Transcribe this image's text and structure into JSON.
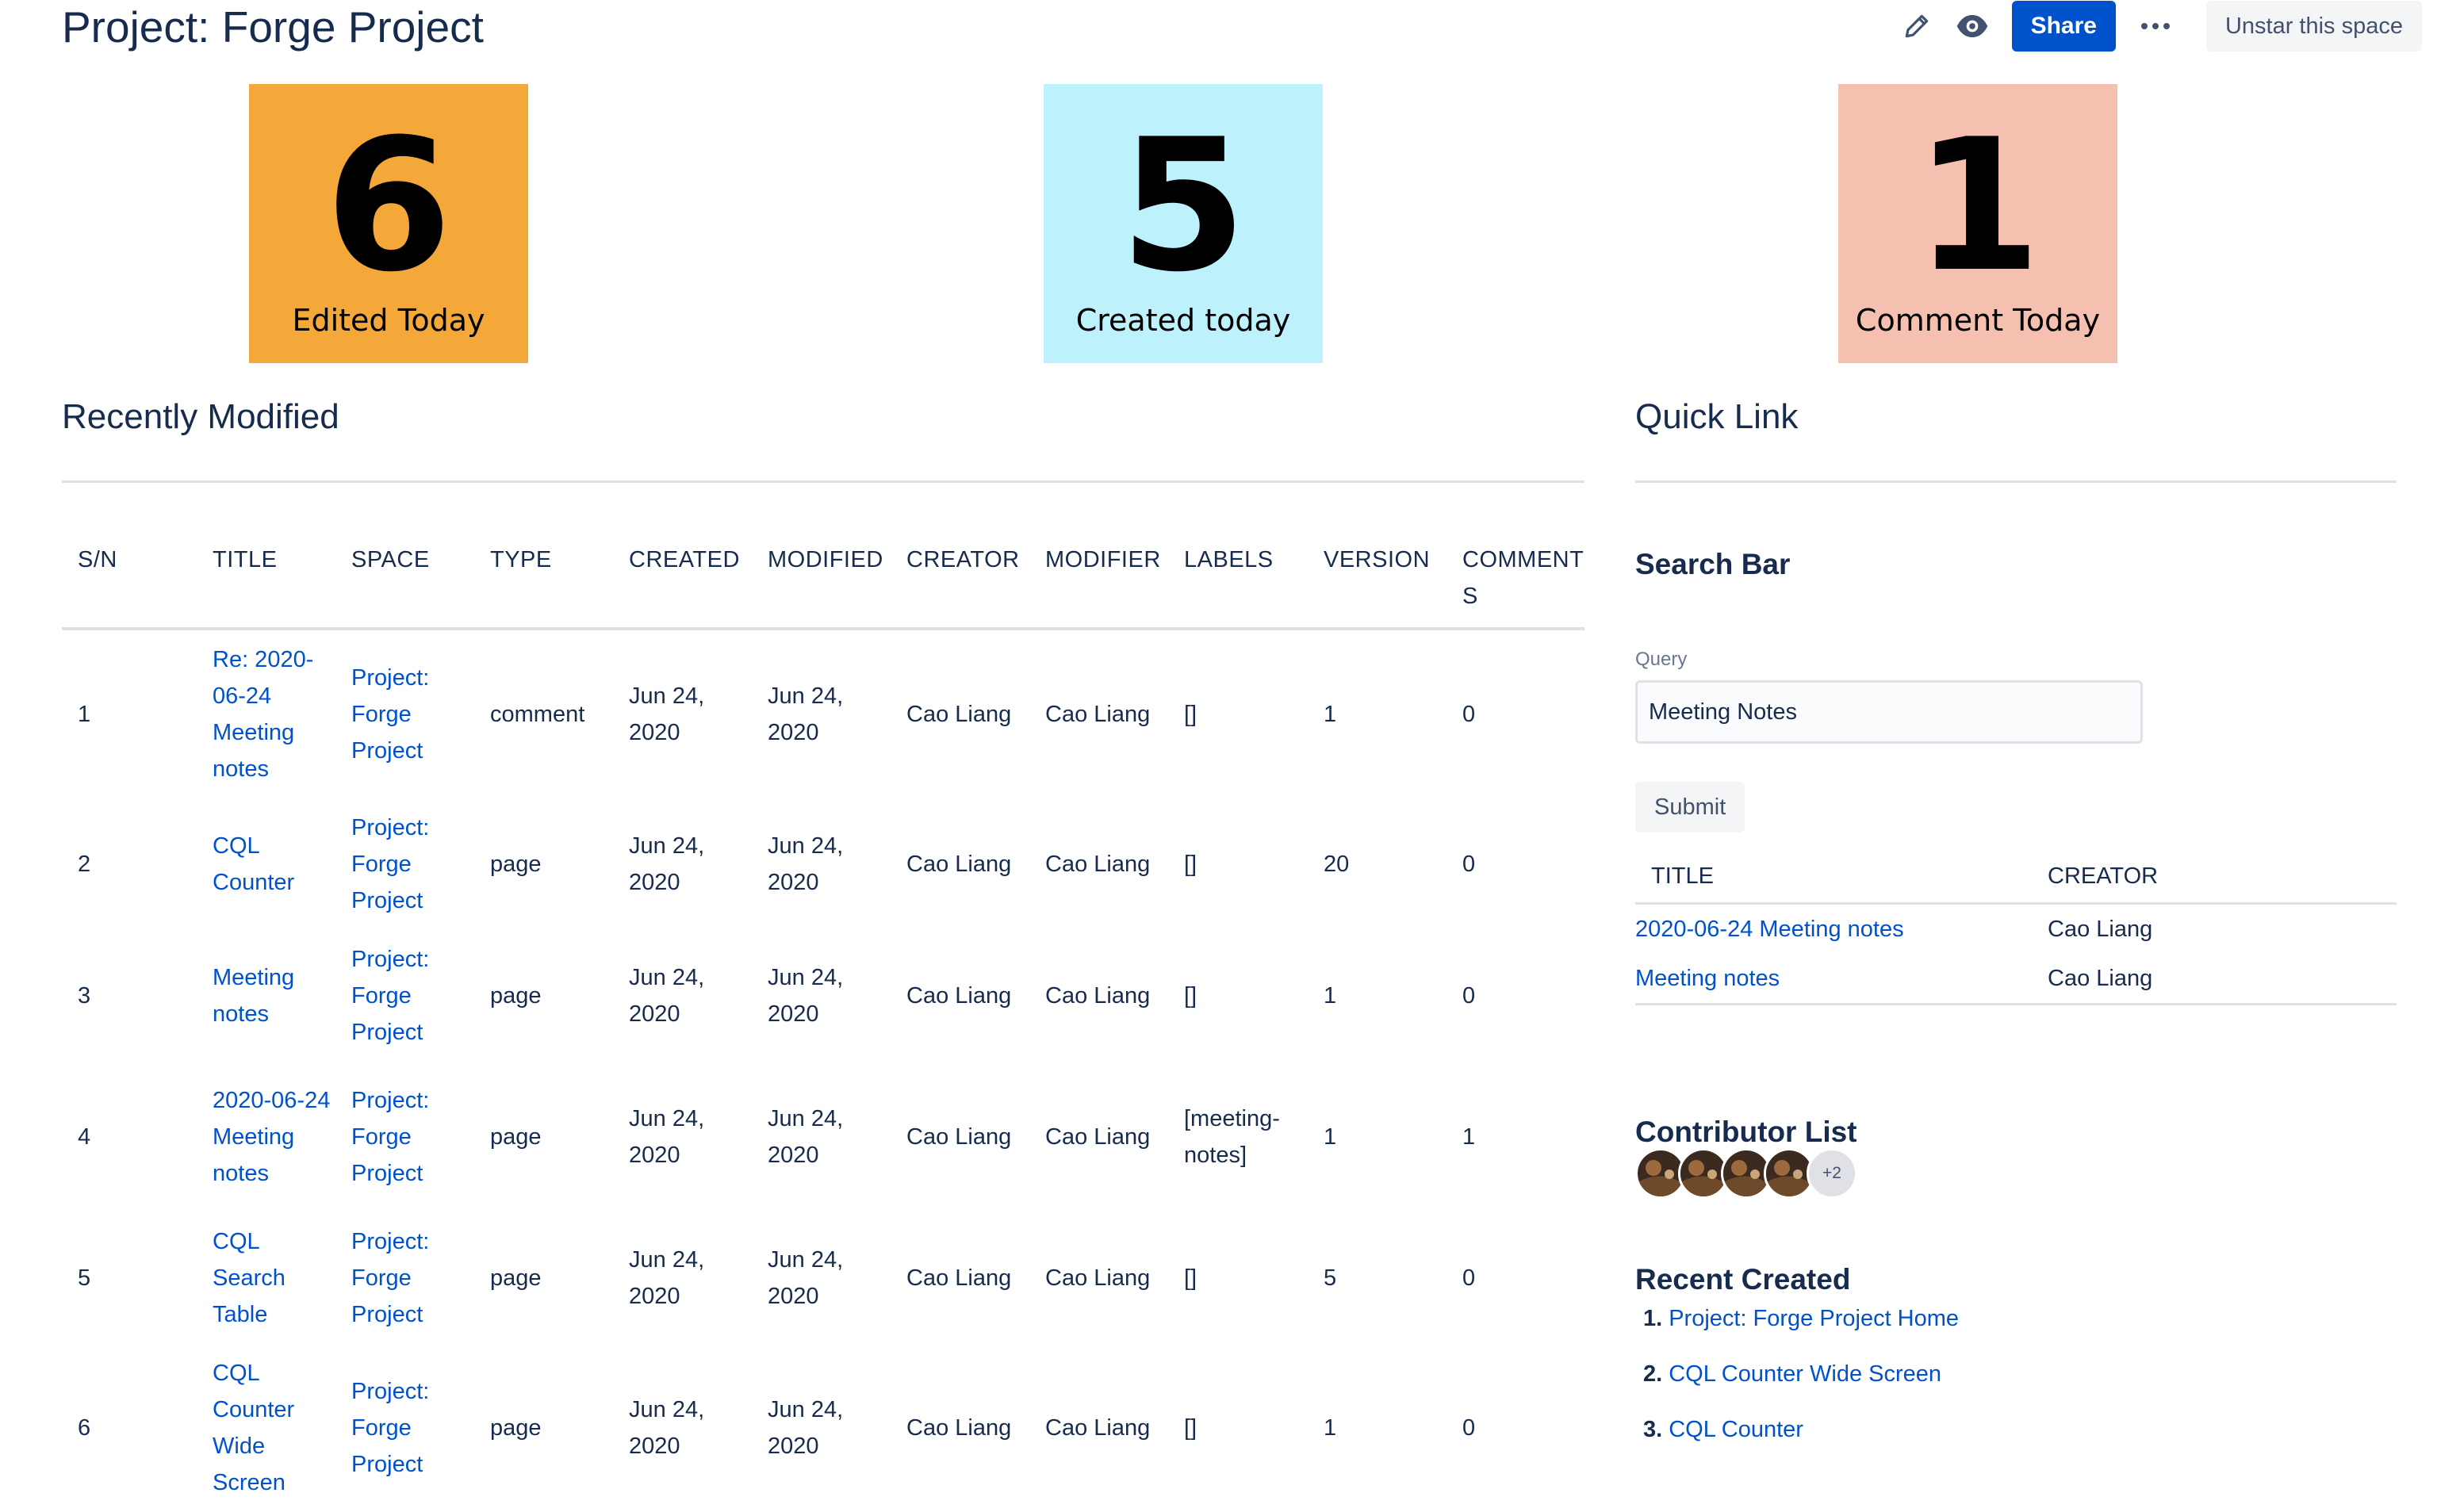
{
  "header": {
    "title": "Project: Forge Project",
    "share_label": "Share",
    "unstar_label": "Unstar this space",
    "icons": [
      "pencil-icon",
      "eye-icon",
      "more-icon"
    ]
  },
  "stats": [
    {
      "value": "6",
      "label": "Edited Today",
      "color": "#f4a83a"
    },
    {
      "value": "5",
      "label": "Created today",
      "color": "#bdf1fc"
    },
    {
      "value": "1",
      "label": "Comment Today",
      "color": "#f5c0b0"
    }
  ],
  "recently_modified": {
    "title": "Recently Modified",
    "columns": [
      "S/N",
      "TITLE",
      "SPACE",
      "TYPE",
      "CREATED",
      "MODIFIED",
      "CREATOR",
      "MODIFIER",
      "LABELS",
      "VERSION",
      "COMMENTS"
    ],
    "rows": [
      {
        "sn": "1",
        "title": "Re: 2020-06-24 Meeting notes",
        "space": "Project: Forge Project",
        "type": "comment",
        "created": "Jun 24, 2020",
        "modified": "Jun 24, 2020",
        "creator": "Cao Liang",
        "modifier": "Cao Liang",
        "labels": "[]",
        "version": "1",
        "comments": "0"
      },
      {
        "sn": "2",
        "title": "CQL Counter",
        "space": "Project: Forge Project",
        "type": "page",
        "created": "Jun 24, 2020",
        "modified": "Jun 24, 2020",
        "creator": "Cao Liang",
        "modifier": "Cao Liang",
        "labels": "[]",
        "version": "20",
        "comments": "0"
      },
      {
        "sn": "3",
        "title": "Meeting notes",
        "space": "Project: Forge Project",
        "type": "page",
        "created": "Jun 24, 2020",
        "modified": "Jun 24, 2020",
        "creator": "Cao Liang",
        "modifier": "Cao Liang",
        "labels": "[]",
        "version": "1",
        "comments": "0"
      },
      {
        "sn": "4",
        "title": "2020-06-24 Meeting notes",
        "space": "Project: Forge Project",
        "type": "page",
        "created": "Jun 24, 2020",
        "modified": "Jun 24, 2020",
        "creator": "Cao Liang",
        "modifier": "Cao Liang",
        "labels": "[meeting-notes]",
        "version": "1",
        "comments": "1"
      },
      {
        "sn": "5",
        "title": "CQL Search Table",
        "space": "Project: Forge Project",
        "type": "page",
        "created": "Jun 24, 2020",
        "modified": "Jun 24, 2020",
        "creator": "Cao Liang",
        "modifier": "Cao Liang",
        "labels": "[]",
        "version": "5",
        "comments": "0"
      },
      {
        "sn": "6",
        "title": "CQL Counter Wide Screen",
        "space": "Project: Forge Project",
        "type": "page",
        "created": "Jun 24, 2020",
        "modified": "Jun 24, 2020",
        "creator": "Cao Liang",
        "modifier": "Cao Liang",
        "labels": "[]",
        "version": "1",
        "comments": "0"
      }
    ]
  },
  "quick_link": {
    "title": "Quick Link",
    "search_bar_title": "Search Bar",
    "query_label": "Query",
    "query_value": "Meeting Notes",
    "submit_label": "Submit",
    "columns": [
      "TITLE",
      "CREATOR"
    ],
    "results": [
      {
        "title": "2020-06-24 Meeting notes",
        "creator": "Cao Liang"
      },
      {
        "title": "Meeting notes",
        "creator": "Cao Liang"
      }
    ],
    "contributor_title": "Contributor List",
    "contributors_more": "+2",
    "recent_created_title": "Recent Created",
    "recent_created": [
      {
        "num": "1.",
        "title": "Project: Forge Project Home"
      },
      {
        "num": "2.",
        "title": "CQL Counter Wide Screen"
      },
      {
        "num": "3.",
        "title": "CQL Counter"
      }
    ]
  }
}
